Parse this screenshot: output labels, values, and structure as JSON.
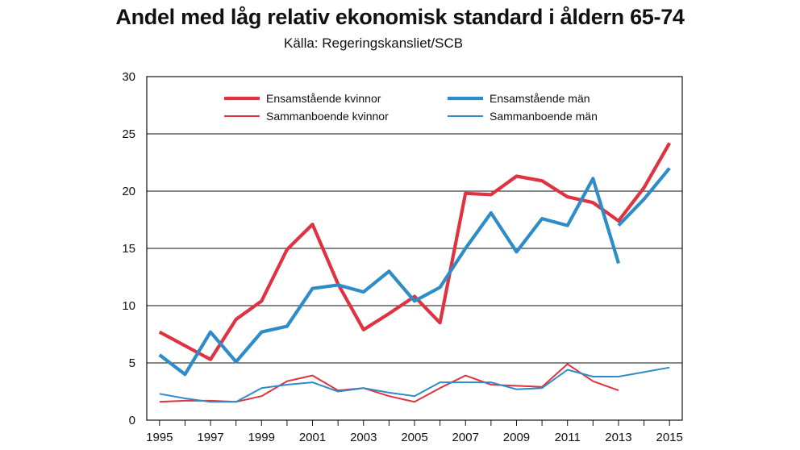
{
  "title": "Andel med låg relativ ekonomisk standard i åldern 65-74",
  "source": "Källa: Regeringskansliet/SCB",
  "colors": {
    "red": "#e03240",
    "blue": "#2e8cc8",
    "grid": "#111111"
  },
  "chart_data": {
    "type": "line",
    "title": "Andel med låg relativ ekonomisk standard i åldern 65-74",
    "xlim": [
      1994.5,
      2015.5
    ],
    "ylim": [
      0,
      30
    ],
    "yticks": [
      0,
      5,
      10,
      15,
      20,
      25,
      30
    ],
    "xtick_labels": [
      "1995",
      "1997",
      "1999",
      "2001",
      "2003",
      "2005",
      "2007",
      "2009",
      "2011",
      "2013",
      "2015"
    ],
    "grid": true,
    "legend_position": "top",
    "series": [
      {
        "name": "Ensamstående kvinnor",
        "color": "#e03240",
        "weight": "thick",
        "segments": [
          [
            [
              1995,
              7.7
            ],
            [
              1996,
              6.5
            ],
            [
              1997,
              5.3
            ],
            [
              1998,
              8.8
            ],
            [
              1999,
              10.4
            ],
            [
              2000,
              14.9
            ],
            [
              2001,
              17.1
            ],
            [
              2002,
              11.9
            ],
            [
              2003,
              7.9
            ],
            [
              2004,
              9.3
            ],
            [
              2005,
              10.8
            ],
            [
              2006,
              8.5
            ],
            [
              2007,
              19.8
            ],
            [
              2008,
              19.7
            ],
            [
              2009,
              21.3
            ],
            [
              2010,
              20.9
            ],
            [
              2011,
              19.5
            ],
            [
              2012,
              19.0
            ],
            [
              2013,
              17.4
            ],
            [
              2014,
              20.3
            ],
            [
              2015,
              24.2
            ]
          ]
        ]
      },
      {
        "name": "Ensamstående män",
        "color": "#2e8cc8",
        "weight": "thick",
        "segments": [
          [
            [
              1995,
              5.7
            ],
            [
              1996,
              4.0
            ],
            [
              1997,
              7.7
            ],
            [
              1998,
              5.1
            ],
            [
              1999,
              7.7
            ],
            [
              2000,
              8.2
            ],
            [
              2001,
              11.5
            ],
            [
              2002,
              11.8
            ],
            [
              2003,
              11.2
            ],
            [
              2004,
              13.0
            ],
            [
              2005,
              10.4
            ],
            [
              2006,
              11.6
            ],
            [
              2007,
              15.0
            ],
            [
              2008,
              18.1
            ],
            [
              2009,
              14.7
            ],
            [
              2010,
              17.6
            ],
            [
              2011,
              17.0
            ],
            [
              2012,
              21.1
            ],
            [
              2013,
              13.7
            ]
          ],
          [
            [
              2013,
              17.0
            ],
            [
              2014,
              19.3
            ],
            [
              2015,
              22.0
            ]
          ]
        ]
      },
      {
        "name": "Sammanboende kvinnor",
        "color": "#e03240",
        "weight": "thin",
        "segments": [
          [
            [
              1995,
              1.6
            ],
            [
              1996,
              1.7
            ],
            [
              1997,
              1.7
            ],
            [
              1998,
              1.6
            ],
            [
              1999,
              2.1
            ],
            [
              2000,
              3.4
            ],
            [
              2001,
              3.9
            ],
            [
              2002,
              2.6
            ],
            [
              2003,
              2.8
            ],
            [
              2004,
              2.1
            ],
            [
              2005,
              1.6
            ],
            [
              2006,
              2.8
            ],
            [
              2007,
              3.9
            ],
            [
              2008,
              3.1
            ],
            [
              2009,
              3.0
            ],
            [
              2010,
              2.9
            ],
            [
              2011,
              4.9
            ],
            [
              2012,
              3.4
            ],
            [
              2013,
              2.6
            ]
          ]
        ]
      },
      {
        "name": "Sammanboende män",
        "color": "#2e8cc8",
        "weight": "thin",
        "segments": [
          [
            [
              1995,
              2.3
            ],
            [
              1996,
              1.9
            ],
            [
              1997,
              1.6
            ],
            [
              1998,
              1.6
            ],
            [
              1999,
              2.8
            ],
            [
              2000,
              3.1
            ],
            [
              2001,
              3.3
            ],
            [
              2002,
              2.5
            ],
            [
              2003,
              2.8
            ],
            [
              2004,
              2.4
            ],
            [
              2005,
              2.1
            ],
            [
              2006,
              3.3
            ],
            [
              2007,
              3.3
            ],
            [
              2008,
              3.3
            ],
            [
              2009,
              2.7
            ],
            [
              2010,
              2.8
            ],
            [
              2011,
              4.4
            ],
            [
              2012,
              3.8
            ],
            [
              2013,
              3.8
            ],
            [
              2014,
              4.2
            ],
            [
              2015,
              4.6
            ]
          ]
        ]
      }
    ]
  }
}
